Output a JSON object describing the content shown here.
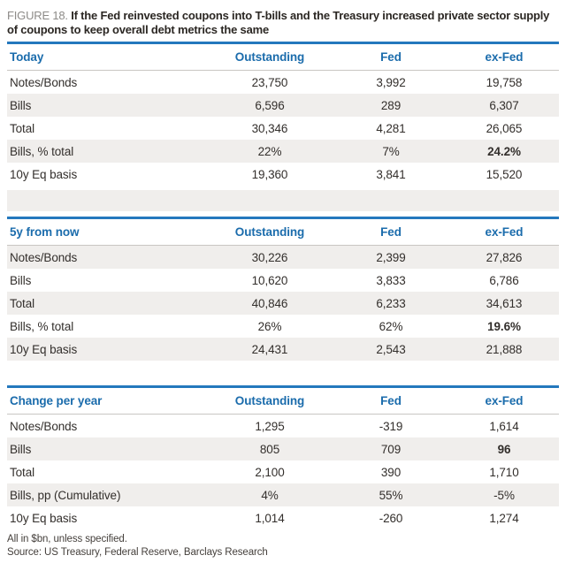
{
  "figure": {
    "label": "FIGURE 18.",
    "title": "If the Fed reinvested coupons into T-bills and the Treasury increased private sector supply of coupons to keep overall debt metrics the same"
  },
  "columns": [
    "Outstanding",
    "Fed",
    "ex-Fed"
  ],
  "tables": [
    {
      "title": "Today",
      "rows": [
        {
          "label": "Notes/Bonds",
          "values": [
            "23,750",
            "3,992",
            "19,758"
          ]
        },
        {
          "label": "Bills",
          "values": [
            "6,596",
            "289",
            "6,307"
          ]
        },
        {
          "label": "Total",
          "values": [
            "30,346",
            "4,281",
            "26,065"
          ]
        },
        {
          "label": "Bills, % total",
          "values": [
            "22%",
            "7%",
            "24.2%"
          ]
        },
        {
          "label": "10y Eq basis",
          "values": [
            "19,360",
            "3,841",
            "15,520"
          ]
        }
      ]
    },
    {
      "title": "5y from now",
      "rows": [
        {
          "label": "Notes/Bonds",
          "values": [
            "30,226",
            "2,399",
            "27,826"
          ]
        },
        {
          "label": "Bills",
          "values": [
            "10,620",
            "3,833",
            "6,786"
          ]
        },
        {
          "label": "Total",
          "values": [
            "40,846",
            "6,233",
            "34,613"
          ]
        },
        {
          "label": "Bills, % total",
          "values": [
            "26%",
            "62%",
            "19.6%"
          ]
        },
        {
          "label": "10y Eq basis",
          "values": [
            "24,431",
            "2,543",
            "21,888"
          ]
        }
      ]
    },
    {
      "title": "Change per year",
      "rows": [
        {
          "label": "Notes/Bonds",
          "values": [
            "1,295",
            "-319",
            "1,614"
          ]
        },
        {
          "label": "Bills",
          "values": [
            "805",
            "709",
            "96"
          ]
        },
        {
          "label": "Total",
          "values": [
            "2,100",
            "390",
            "1,710"
          ]
        },
        {
          "label": "Bills, pp (Cumulative)",
          "values": [
            "4%",
            "55%",
            "-5%"
          ]
        },
        {
          "label": "10y Eq basis",
          "values": [
            "1,014",
            "-260",
            "1,274"
          ]
        }
      ]
    }
  ],
  "footnotes": [
    "All in $bn, unless specified.",
    "Source: US Treasury, Federal Reserve, Barclays Research"
  ],
  "colors": {
    "accent_blue": "#1b6cac",
    "rule_blue": "#2478bd",
    "stripe_gray": "#f0eeec",
    "text_dark": "#332f2c",
    "figure_label_gray": "#8d8b88"
  }
}
